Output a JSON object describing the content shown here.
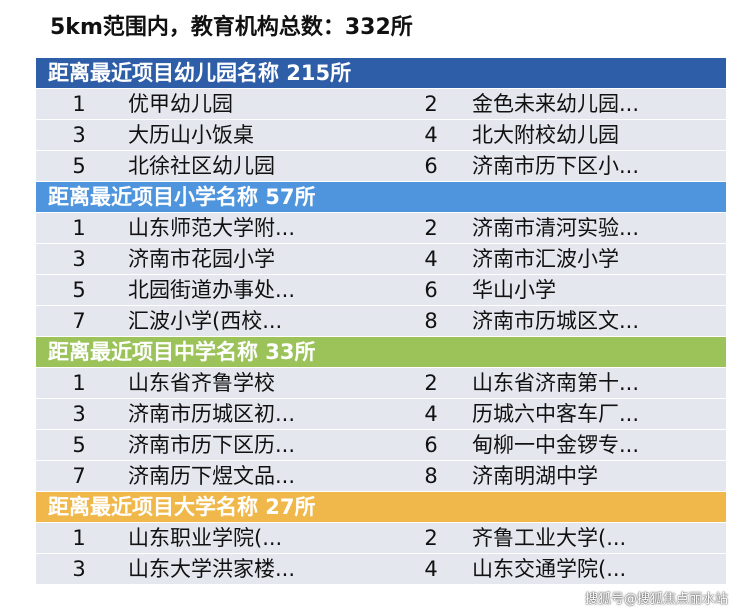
{
  "headline": "5km范围内，教育机构总数：332所",
  "sections": [
    {
      "title": "距离最近项目幼儿园名称  215所",
      "color": "#2f5ea8",
      "rows": [
        [
          "1",
          "优甲幼儿园",
          "2",
          "金色未来幼儿园..."
        ],
        [
          "3",
          "大历山小饭桌",
          "4",
          "北大附校幼儿园"
        ],
        [
          "5",
          "北徐社区幼儿园",
          "6",
          "济南市历下区小..."
        ]
      ]
    },
    {
      "title": "距离最近项目小学名称  57所",
      "color": "#4f95dd",
      "rows": [
        [
          "1",
          "山东师范大学附...",
          "2",
          "济南市清河实验..."
        ],
        [
          "3",
          "济南市花园小学",
          "4",
          "济南市汇波小学"
        ],
        [
          "5",
          "北园街道办事处...",
          "6",
          "华山小学"
        ],
        [
          "7",
          "汇波小学(西校...",
          "8",
          "济南市历城区文..."
        ]
      ]
    },
    {
      "title": "距离最近项目中学名称  33所",
      "color": "#9bc35a",
      "rows": [
        [
          "1",
          "山东省齐鲁学校",
          "2",
          "山东省济南第十..."
        ],
        [
          "3",
          "济南市历城区初...",
          "4",
          "历城六中客车厂..."
        ],
        [
          "5",
          "济南市历下区历...",
          "6",
          "甸柳一中金锣专..."
        ],
        [
          "7",
          "济南历下煜文品...",
          "8",
          "济南明湖中学"
        ]
      ]
    },
    {
      "title": "距离最近项目大学名称  27所",
      "color": "#f0b84a",
      "rows": [
        [
          "1",
          "山东职业学院(...",
          "2",
          "齐鲁工业大学(..."
        ],
        [
          "3",
          "山东大学洪家楼...",
          "4",
          "山东交通学院(..."
        ]
      ]
    }
  ],
  "watermark": "搜狐号@搜狐焦点丽水站"
}
